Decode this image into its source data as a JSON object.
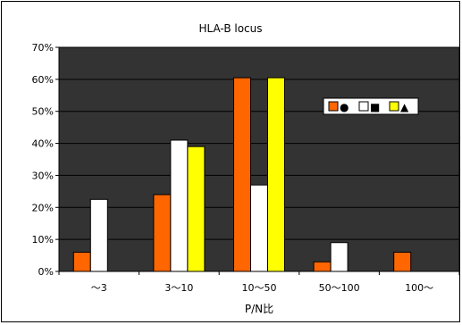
{
  "chart_data": {
    "type": "bar",
    "title": "HLA-B locus",
    "xlabel": "P/N比",
    "ylabel": "",
    "categories": [
      "～3",
      "3～10",
      "10～50",
      "50～100",
      "100～"
    ],
    "ylim": [
      0,
      70
    ],
    "yticks": [
      0,
      10,
      20,
      30,
      40,
      50,
      60,
      70
    ],
    "y_tick_suffix": "%",
    "grid": true,
    "legend_position": "right",
    "legend": [
      {
        "marker_color": "#FF6600",
        "symbol": "●"
      },
      {
        "marker_color": "#FFFFFF",
        "symbol": "■"
      },
      {
        "marker_color": "#FFFF00",
        "symbol": "▲"
      }
    ],
    "series": [
      {
        "color": "#FF6600",
        "values": [
          6,
          24,
          60.5,
          3,
          6
        ]
      },
      {
        "color": "#FFFFFF",
        "values": [
          22.5,
          41,
          27,
          9,
          0
        ]
      },
      {
        "color": "#FFFF00",
        "values": [
          0,
          39,
          60.5,
          0,
          0
        ]
      }
    ],
    "plot_background": "#333333"
  }
}
